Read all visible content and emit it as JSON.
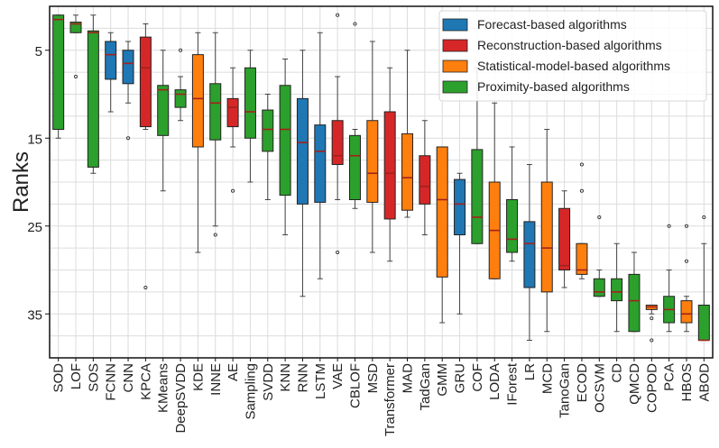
{
  "chart_data": {
    "type": "boxplot",
    "ylabel": "Ranks",
    "xlabel": "",
    "ylim": [
      40,
      0
    ],
    "y_inverted": true,
    "yticks": [
      5,
      15,
      25,
      35
    ],
    "grid": true,
    "legend_position": "top-right",
    "groups": [
      {
        "name": "Forecast-based algorithms",
        "color": "#1f77b4"
      },
      {
        "name": "Reconstruction-based algorithms",
        "color": "#d62728"
      },
      {
        "name": "Statistical-model-based algorithms",
        "color": "#ff7f0e"
      },
      {
        "name": "Proximity-based algorithms",
        "color": "#2ca02c"
      }
    ],
    "boxes": [
      {
        "label": "SOD",
        "group": 3,
        "whisker_low": 1,
        "q1": 1,
        "median": 1.5,
        "q3": 14,
        "whisker_high": 15,
        "outliers": []
      },
      {
        "label": "LOF",
        "group": 3,
        "whisker_low": 1,
        "q1": 1.8,
        "median": 2,
        "q3": 3,
        "whisker_high": 3,
        "outliers": [
          8
        ]
      },
      {
        "label": "SOS",
        "group": 3,
        "whisker_low": 1,
        "q1": 2.8,
        "median": 3,
        "q3": 18.3,
        "whisker_high": 19,
        "outliers": []
      },
      {
        "label": "FCNN",
        "group": 0,
        "whisker_low": 3,
        "q1": 4,
        "median": 5.5,
        "q3": 8.3,
        "whisker_high": 12,
        "outliers": []
      },
      {
        "label": "CNN",
        "group": 0,
        "whisker_low": 4,
        "q1": 5,
        "median": 6.5,
        "q3": 8.8,
        "whisker_high": 11,
        "outliers": [
          15
        ]
      },
      {
        "label": "KPCA",
        "group": 1,
        "whisker_low": 2,
        "q1": 3.5,
        "median": 7,
        "q3": 13.7,
        "whisker_high": 14,
        "outliers": [
          32
        ]
      },
      {
        "label": "KMeans",
        "group": 3,
        "whisker_low": 5,
        "q1": 9,
        "median": 9.5,
        "q3": 14.7,
        "whisker_high": 21,
        "outliers": []
      },
      {
        "label": "DeepSVDD",
        "group": 3,
        "whisker_low": 8,
        "q1": 9.5,
        "median": 10,
        "q3": 11.5,
        "whisker_high": 13,
        "outliers": [
          5
        ]
      },
      {
        "label": "KDE",
        "group": 2,
        "whisker_low": 3,
        "q1": 5.5,
        "median": 10.5,
        "q3": 16,
        "whisker_high": 28,
        "outliers": []
      },
      {
        "label": "INNE",
        "group": 3,
        "whisker_low": 3,
        "q1": 8.8,
        "median": 11,
        "q3": 15.2,
        "whisker_high": 25,
        "outliers": [
          26
        ]
      },
      {
        "label": "AE",
        "group": 1,
        "whisker_low": 7,
        "q1": 10.5,
        "median": 11.5,
        "q3": 13.7,
        "whisker_high": 16,
        "outliers": [
          21
        ]
      },
      {
        "label": "Sampling",
        "group": 3,
        "whisker_low": 5,
        "q1": 7,
        "median": 12,
        "q3": 15,
        "whisker_high": 20,
        "outliers": []
      },
      {
        "label": "SVDD",
        "group": 3,
        "whisker_low": 10,
        "q1": 11.8,
        "median": 14,
        "q3": 16.5,
        "whisker_high": 22,
        "outliers": []
      },
      {
        "label": "KNN",
        "group": 3,
        "whisker_low": 6,
        "q1": 9,
        "median": 14,
        "q3": 21.5,
        "whisker_high": 26,
        "outliers": []
      },
      {
        "label": "RNN",
        "group": 0,
        "whisker_low": 5,
        "q1": 10.5,
        "median": 15.5,
        "q3": 22.5,
        "whisker_high": 33,
        "outliers": []
      },
      {
        "label": "LSTM",
        "group": 0,
        "whisker_low": 3,
        "q1": 13.5,
        "median": 16.5,
        "q3": 22.3,
        "whisker_high": 31,
        "outliers": []
      },
      {
        "label": "VAE",
        "group": 1,
        "whisker_low": 8,
        "q1": 13,
        "median": 17,
        "q3": 18,
        "whisker_high": 22,
        "outliers": [
          1,
          28
        ]
      },
      {
        "label": "CBLOF",
        "group": 3,
        "whisker_low": 14,
        "q1": 14.7,
        "median": 17,
        "q3": 22,
        "whisker_high": 23,
        "outliers": [
          2
        ]
      },
      {
        "label": "MSD",
        "group": 2,
        "whisker_low": 4,
        "q1": 13,
        "median": 19,
        "q3": 22.3,
        "whisker_high": 28,
        "outliers": []
      },
      {
        "label": "Transformer",
        "group": 1,
        "whisker_low": 7,
        "q1": 12,
        "median": 19,
        "q3": 24.2,
        "whisker_high": 29,
        "outliers": []
      },
      {
        "label": "MAD",
        "group": 2,
        "whisker_low": 5,
        "q1": 14.5,
        "median": 19.5,
        "q3": 23.2,
        "whisker_high": 24,
        "outliers": []
      },
      {
        "label": "TadGan",
        "group": 1,
        "whisker_low": 13,
        "q1": 17,
        "median": 20.5,
        "q3": 22.5,
        "whisker_high": 26,
        "outliers": []
      },
      {
        "label": "GMM",
        "group": 2,
        "whisker_low": 16,
        "q1": 16,
        "median": 22,
        "q3": 30.8,
        "whisker_high": 36,
        "outliers": []
      },
      {
        "label": "GRU",
        "group": 0,
        "whisker_low": 19,
        "q1": 19.7,
        "median": 22.5,
        "q3": 26,
        "whisker_high": 35,
        "outliers": []
      },
      {
        "label": "COF",
        "group": 3,
        "whisker_low": 7,
        "q1": 16.3,
        "median": 24,
        "q3": 27,
        "whisker_high": 27,
        "outliers": []
      },
      {
        "label": "LODA",
        "group": 2,
        "whisker_low": 11,
        "q1": 20,
        "median": 25.5,
        "q3": 31,
        "whisker_high": 31,
        "outliers": []
      },
      {
        "label": "IForest",
        "group": 3,
        "whisker_low": 16,
        "q1": 22,
        "median": 26.5,
        "q3": 28,
        "whisker_high": 29,
        "outliers": []
      },
      {
        "label": "LR",
        "group": 0,
        "whisker_low": 18,
        "q1": 24.5,
        "median": 27,
        "q3": 32,
        "whisker_high": 38,
        "outliers": []
      },
      {
        "label": "MCD",
        "group": 2,
        "whisker_low": 14,
        "q1": 20,
        "median": 27.5,
        "q3": 32.5,
        "whisker_high": 37,
        "outliers": []
      },
      {
        "label": "TanoGan",
        "group": 1,
        "whisker_low": 21,
        "q1": 23,
        "median": 29.5,
        "q3": 30,
        "whisker_high": 32,
        "outliers": []
      },
      {
        "label": "ECOD",
        "group": 2,
        "whisker_low": 27,
        "q1": 27,
        "median": 30,
        "q3": 30.5,
        "whisker_high": 31,
        "outliers": [
          18,
          21
        ]
      },
      {
        "label": "OCSVM",
        "group": 3,
        "whisker_low": 30,
        "q1": 31,
        "median": 32.5,
        "q3": 33,
        "whisker_high": 33,
        "outliers": [
          24
        ]
      },
      {
        "label": "CD",
        "group": 3,
        "whisker_low": 27,
        "q1": 31,
        "median": 32.5,
        "q3": 33.5,
        "whisker_high": 37,
        "outliers": []
      },
      {
        "label": "QMCD",
        "group": 3,
        "whisker_low": 28,
        "q1": 30.5,
        "median": 33.5,
        "q3": 37,
        "whisker_high": 37,
        "outliers": []
      },
      {
        "label": "COPOD",
        "group": 2,
        "whisker_low": 34,
        "q1": 34,
        "median": 34.2,
        "q3": 34.5,
        "whisker_high": 35,
        "outliers": [
          35.5,
          38
        ]
      },
      {
        "label": "PCA",
        "group": 3,
        "whisker_low": 30,
        "q1": 33,
        "median": 34.5,
        "q3": 36,
        "whisker_high": 37,
        "outliers": [
          25
        ]
      },
      {
        "label": "HBOS",
        "group": 2,
        "whisker_low": 33,
        "q1": 33.5,
        "median": 35,
        "q3": 36,
        "whisker_high": 37,
        "outliers": [
          25,
          29
        ]
      },
      {
        "label": "ABOD",
        "group": 3,
        "whisker_low": 27,
        "q1": 34,
        "median": 38,
        "q3": 38,
        "whisker_high": 38,
        "outliers": [
          24
        ]
      }
    ]
  }
}
